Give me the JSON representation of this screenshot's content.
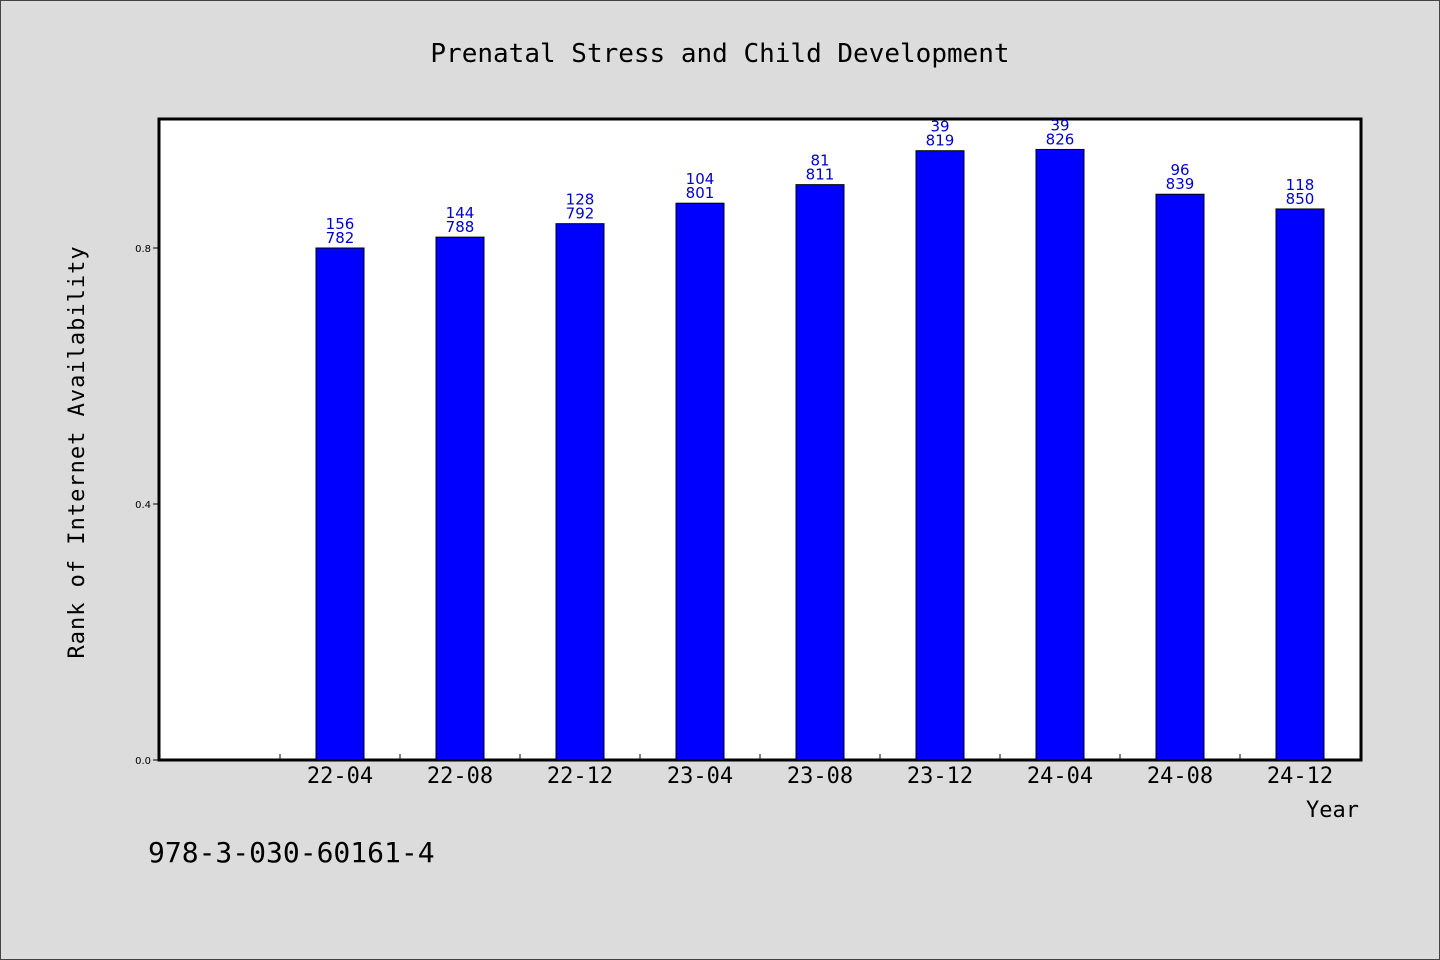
{
  "chart_data": {
    "type": "bar",
    "title": "Prenatal Stress and Child Development",
    "xlabel": "Year",
    "ylabel": "Rank of Internet Availability",
    "categories": [
      "22-04",
      "22-08",
      "22-12",
      "23-04",
      "23-08",
      "23-12",
      "24-04",
      "24-08",
      "24-12"
    ],
    "values": [
      0.8,
      0.817,
      0.838,
      0.87,
      0.899,
      0.952,
      0.954,
      0.884,
      0.861
    ],
    "labels_top": [
      "156",
      "144",
      "128",
      "104",
      "81",
      "39",
      "39",
      "96",
      "118"
    ],
    "labels_bottom": [
      "782",
      "788",
      "792",
      "801",
      "811",
      "819",
      "826",
      "839",
      "850"
    ],
    "yticks": [
      "0.0",
      "0.4",
      "0.8"
    ],
    "ytick_values": [
      0.0,
      0.4,
      0.8
    ],
    "ylim": [
      0,
      1.0
    ],
    "grid": false,
    "bar_color": "#0000ff",
    "label_color": "#0000cc"
  },
  "footer": {
    "isbn": "978-3-030-60161-4"
  }
}
